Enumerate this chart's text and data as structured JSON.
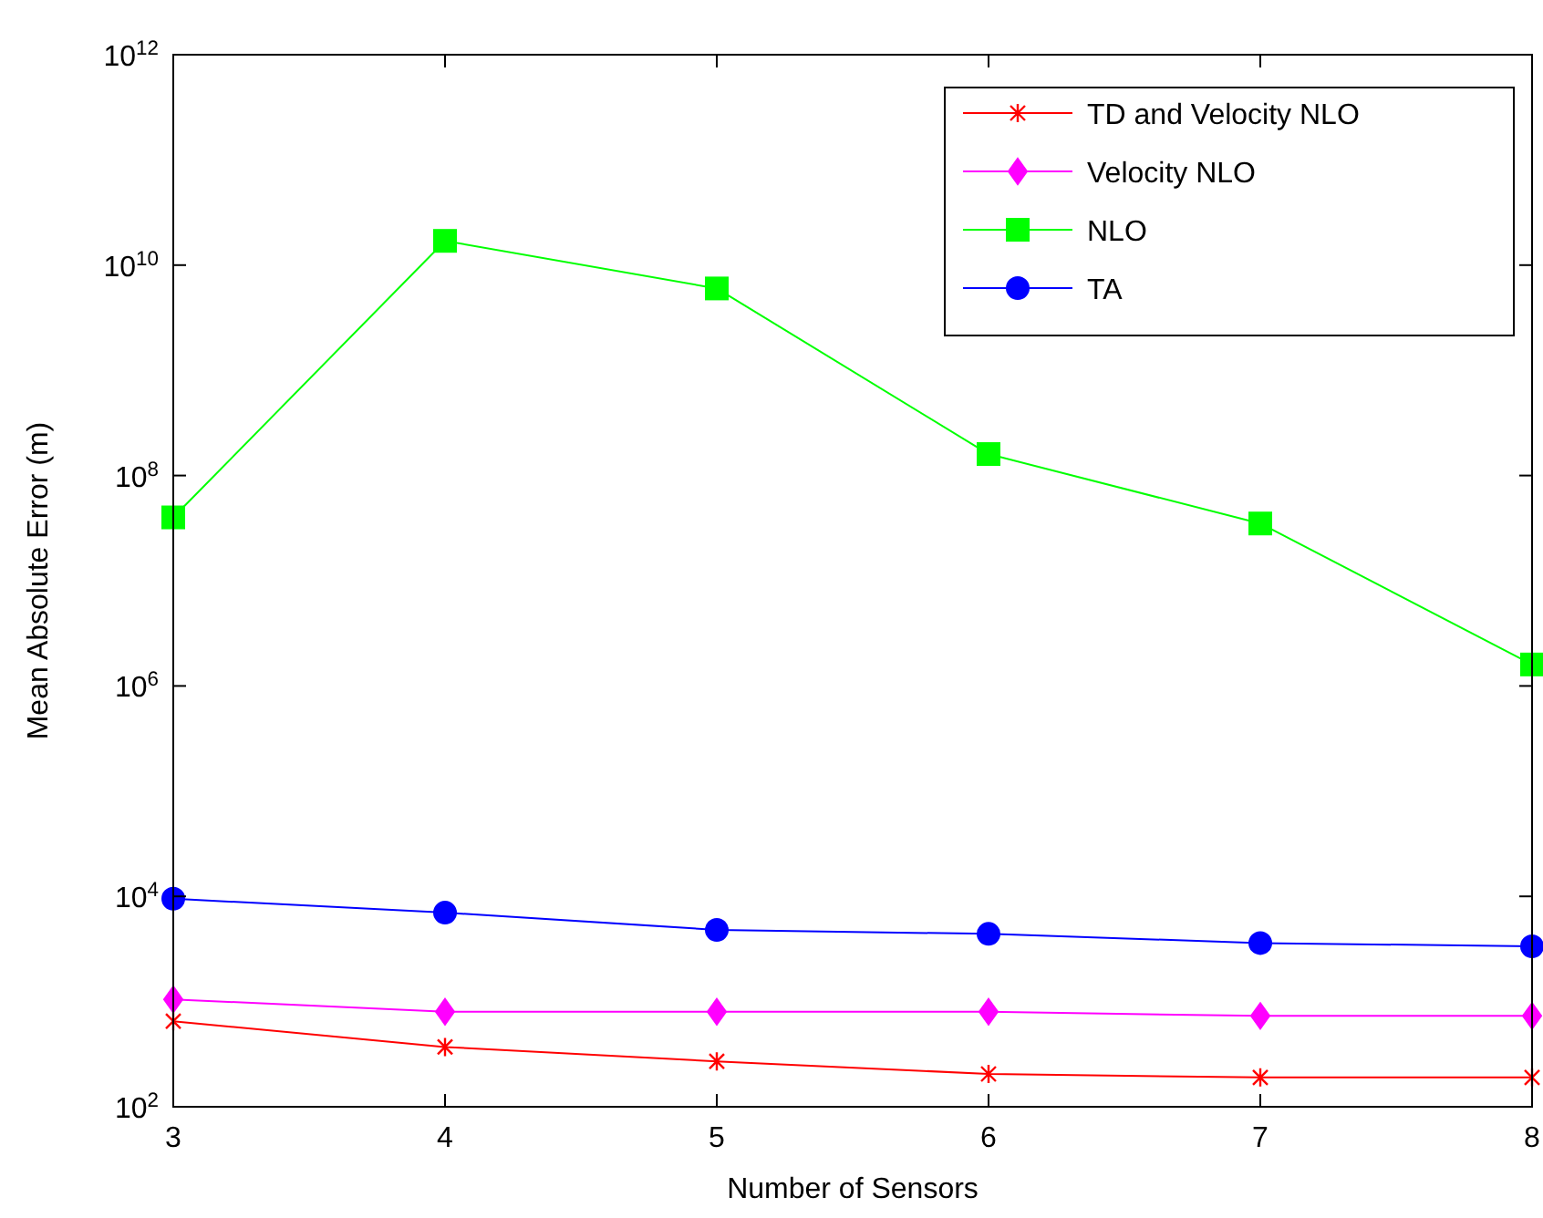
{
  "chart_data": {
    "type": "line",
    "xlabel": "Number of Sensors",
    "ylabel": "Mean Absolute Error (m)",
    "log": "y",
    "x": [
      3,
      4,
      5,
      6,
      7,
      8
    ],
    "xlim": [
      3,
      8
    ],
    "xticks": [
      3,
      4,
      5,
      6,
      7,
      8
    ],
    "ylim": [
      100,
      1000000000000
    ],
    "yticks": [
      {
        "value": 100,
        "label": "10$^{2}$"
      },
      {
        "value": 10000,
        "label": "10$^{4}$"
      },
      {
        "value": 1000000,
        "label": "10$^{6}$"
      },
      {
        "value": 100000000,
        "label": "10$^{8}$"
      },
      {
        "value": 10000000000,
        "label": "10$^{10}$"
      },
      {
        "value": 1000000000000,
        "label": "10$^{12}$"
      }
    ],
    "grid": false,
    "legend": "top right",
    "line_style": "solid",
    "series": [
      {
        "name": "TD and Velocity NLO",
        "color": "#ff0000",
        "marker": "cross",
        "values": [
          650,
          370,
          270,
          205,
          190,
          190
        ]
      },
      {
        "name": "Velocity NLO",
        "color": "#ff00ff",
        "marker": "diamond",
        "values": [
          1050,
          800,
          800,
          800,
          730,
          730
        ]
      },
      {
        "name": "NLO",
        "color": "#00ff00",
        "marker": "square",
        "values": [
          40000000,
          17000000000,
          6000000000,
          160000000,
          35000000,
          1600000
        ]
      },
      {
        "name": "TA",
        "color": "#0000ff",
        "marker": "circle",
        "values": [
          9500,
          7000,
          4800,
          4400,
          3600,
          3350
        ]
      }
    ]
  }
}
